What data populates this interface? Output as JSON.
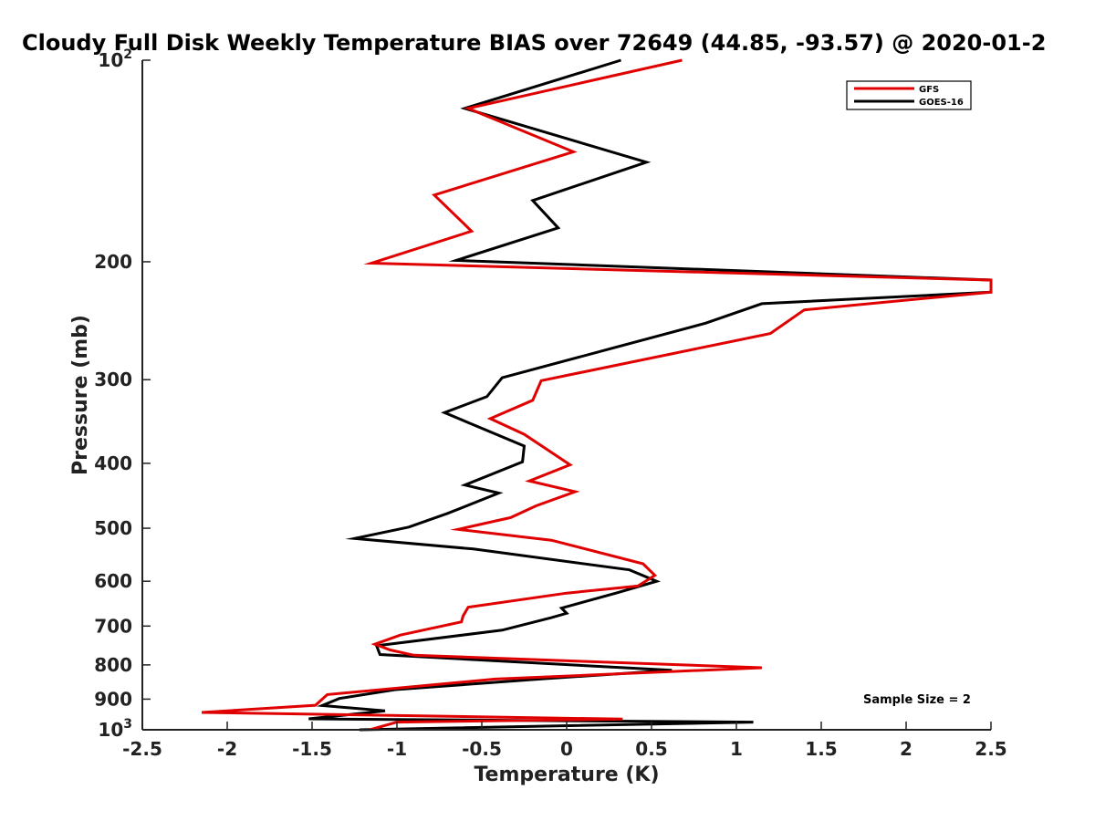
{
  "chart_data": {
    "type": "line",
    "title": "Cloudy Full Disk Weekly Temperature BIAS over 72649 (44.85, -93.57) @ 2020-01-2",
    "xlabel": "Temperature (K)",
    "ylabel": "Pressure (mb)",
    "xlim": [
      -2.5,
      2.5
    ],
    "ylim": [
      1000,
      100
    ],
    "y_scale": "log",
    "x_ticks": [
      -2.5,
      -2,
      -1.5,
      -1,
      -0.5,
      0,
      0.5,
      1,
      1.5,
      2,
      2.5
    ],
    "x_tick_labels": [
      "-2.5",
      "-2",
      "-1.5",
      "-1",
      "-0.5",
      "0",
      "0.5",
      "1",
      "1.5",
      "2",
      "2.5"
    ],
    "y_ticks": [
      {
        "value": 100,
        "base": "10",
        "exp": "2"
      },
      {
        "value": 200,
        "label": "200"
      },
      {
        "value": 300,
        "label": "300"
      },
      {
        "value": 400,
        "label": "400"
      },
      {
        "value": 500,
        "label": "500"
      },
      {
        "value": 600,
        "label": "600"
      },
      {
        "value": 700,
        "label": "700"
      },
      {
        "value": 800,
        "label": "800"
      },
      {
        "value": 900,
        "label": "900"
      },
      {
        "value": 1000,
        "base": "10",
        "exp": "3"
      }
    ],
    "grid": false,
    "legend_position": "top-right",
    "annotation": "Sample Size = 2",
    "series": [
      {
        "name": "GFS",
        "color": "#e00000",
        "points": [
          [
            0.68,
            100
          ],
          [
            -0.58,
            118
          ],
          [
            0.04,
            137
          ],
          [
            -0.78,
            159
          ],
          [
            -0.56,
            180
          ],
          [
            -1.15,
            201
          ],
          [
            2.5,
            213
          ],
          [
            2.5,
            222
          ],
          [
            1.4,
            236
          ],
          [
            1.2,
            256
          ],
          [
            -0.15,
            301
          ],
          [
            -0.2,
            322
          ],
          [
            -0.45,
            343
          ],
          [
            -0.25,
            362
          ],
          [
            0.02,
            402
          ],
          [
            -0.22,
            425
          ],
          [
            0.05,
            441
          ],
          [
            -0.18,
            463
          ],
          [
            -0.33,
            482
          ],
          [
            -0.64,
            502
          ],
          [
            -0.09,
            521
          ],
          [
            0.45,
            565
          ],
          [
            0.52,
            588
          ],
          [
            0.42,
            610
          ],
          [
            0.0,
            625
          ],
          [
            -0.58,
            656
          ],
          [
            -0.61,
            676
          ],
          [
            -0.62,
            690
          ],
          [
            -0.98,
            722
          ],
          [
            -1.13,
            745
          ],
          [
            -1.04,
            760
          ],
          [
            -0.9,
            774
          ],
          [
            1.15,
            808
          ],
          [
            -0.42,
            840
          ],
          [
            -1.41,
            886
          ],
          [
            -1.48,
            919
          ],
          [
            -2.15,
            942
          ],
          [
            0.33,
            964
          ],
          [
            -1.0,
            974
          ],
          [
            -1.16,
            1000
          ]
        ]
      },
      {
        "name": "GOES-16",
        "color": "#000000",
        "points": [
          [
            0.32,
            100
          ],
          [
            -0.6,
            118
          ],
          [
            0.47,
            142
          ],
          [
            -0.2,
            162
          ],
          [
            -0.05,
            178
          ],
          [
            -0.65,
            199
          ],
          [
            2.5,
            213
          ],
          [
            2.5,
            222
          ],
          [
            1.15,
            231
          ],
          [
            0.82,
            247
          ],
          [
            -0.38,
            298
          ],
          [
            -0.47,
            318
          ],
          [
            -0.72,
            336
          ],
          [
            -0.25,
            377
          ],
          [
            -0.26,
            398
          ],
          [
            -0.6,
            431
          ],
          [
            -0.4,
            443
          ],
          [
            -0.7,
            475
          ],
          [
            -0.93,
            498
          ],
          [
            -1.25,
            518
          ],
          [
            -0.55,
            537
          ],
          [
            0.37,
            577
          ],
          [
            0.53,
            600
          ],
          [
            0.3,
            624
          ],
          [
            -0.03,
            658
          ],
          [
            0.0,
            670
          ],
          [
            -0.09,
            680
          ],
          [
            -0.38,
            710
          ],
          [
            -1.12,
            749
          ],
          [
            -1.1,
            772
          ],
          [
            0.62,
            815
          ],
          [
            -0.13,
            839
          ],
          [
            -1.01,
            871
          ],
          [
            -1.34,
            898
          ],
          [
            -1.44,
            920
          ],
          [
            -1.07,
            937
          ],
          [
            -1.52,
            963
          ],
          [
            1.1,
            974
          ],
          [
            -1.22,
            1000
          ]
        ]
      }
    ]
  }
}
